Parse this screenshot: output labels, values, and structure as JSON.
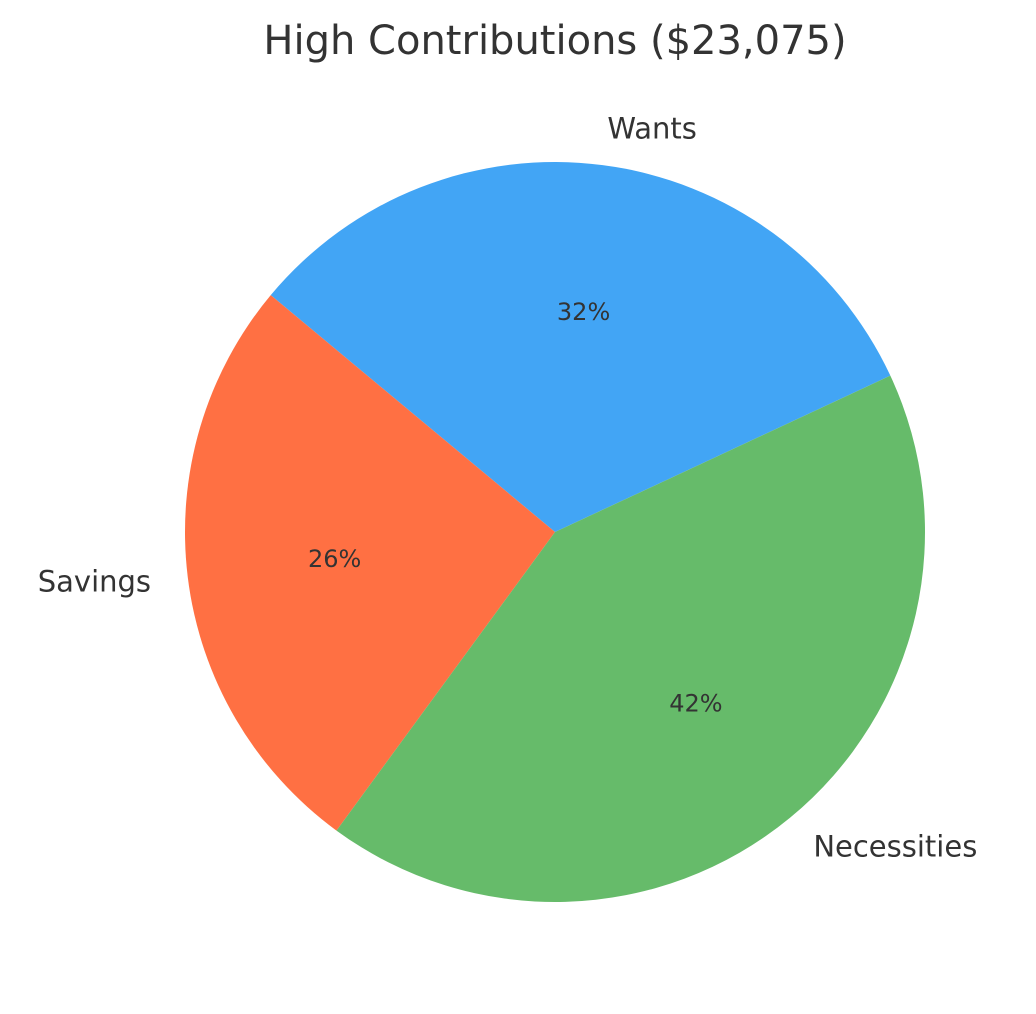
{
  "chart_data": {
    "type": "pie",
    "title": "High Contributions ($23,075)",
    "slices": [
      {
        "label": "Wants",
        "value": 32,
        "pct_label": "32%",
        "color": "#42A5F5"
      },
      {
        "label": "Savings",
        "value": 26,
        "pct_label": "26%",
        "color": "#FF7043"
      },
      {
        "label": "Necessities",
        "value": 42,
        "pct_label": "42%",
        "color": "#66BB6A"
      }
    ],
    "start_angle_deg": 25,
    "direction": "counterclockwise"
  }
}
